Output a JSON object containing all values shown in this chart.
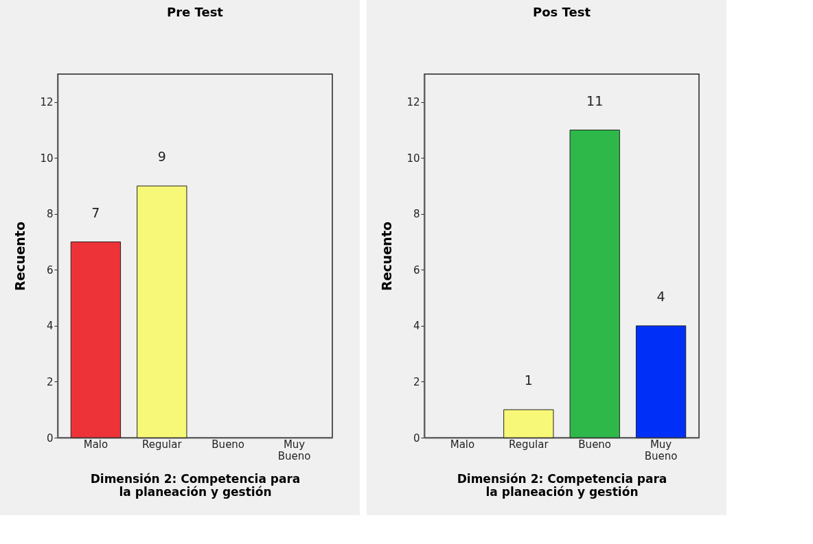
{
  "chart_data": [
    {
      "type": "bar",
      "title": "Pre Test",
      "xlabel": "Dimensión 2: Competencia para la planeación y gestión",
      "ylabel": "Recuento",
      "categories": [
        "Malo",
        "Regular",
        "Bueno",
        "Muy Bueno"
      ],
      "values": [
        7,
        9,
        null,
        null
      ],
      "colors": [
        "#ee3338",
        "#f8f878",
        "#2eb84a",
        "#0030f8"
      ],
      "ylim": [
        0,
        13
      ],
      "yticks": [
        0,
        2,
        4,
        6,
        8,
        10,
        12
      ],
      "data_labels": true
    },
    {
      "type": "bar",
      "title": "Pos Test",
      "xlabel": "Dimensión 2: Competencia para la planeación y gestión",
      "ylabel": "Recuento",
      "categories": [
        "Malo",
        "Regular",
        "Bueno",
        "Muy Bueno"
      ],
      "values": [
        null,
        1,
        11,
        4
      ],
      "colors": [
        "#ee3338",
        "#f8f878",
        "#2eb84a",
        "#0030f8"
      ],
      "ylim": [
        0,
        13
      ],
      "yticks": [
        0,
        2,
        4,
        6,
        8,
        10,
        12
      ],
      "data_labels": true
    }
  ]
}
